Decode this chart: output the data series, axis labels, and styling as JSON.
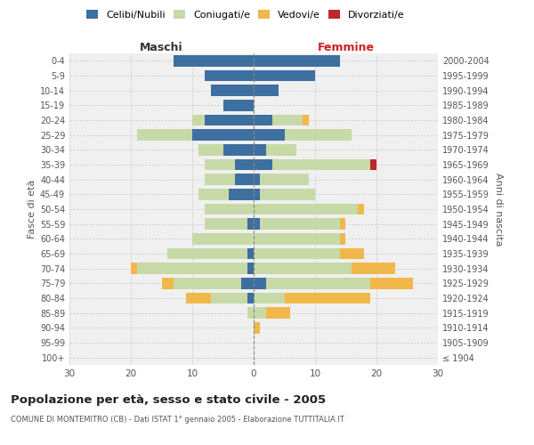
{
  "age_groups": [
    "100+",
    "95-99",
    "90-94",
    "85-89",
    "80-84",
    "75-79",
    "70-74",
    "65-69",
    "60-64",
    "55-59",
    "50-54",
    "45-49",
    "40-44",
    "35-39",
    "30-34",
    "25-29",
    "20-24",
    "15-19",
    "10-14",
    "5-9",
    "0-4"
  ],
  "birth_years": [
    "≤ 1904",
    "1905-1909",
    "1910-1914",
    "1915-1919",
    "1920-1924",
    "1925-1929",
    "1930-1934",
    "1935-1939",
    "1940-1944",
    "1945-1949",
    "1950-1954",
    "1955-1959",
    "1960-1964",
    "1965-1969",
    "1970-1974",
    "1975-1979",
    "1980-1984",
    "1985-1989",
    "1990-1994",
    "1995-1999",
    "2000-2004"
  ],
  "maschi": {
    "celibi": [
      0,
      0,
      0,
      0,
      1,
      2,
      1,
      1,
      0,
      1,
      0,
      4,
      3,
      3,
      5,
      10,
      8,
      5,
      7,
      8,
      13
    ],
    "coniugati": [
      0,
      0,
      0,
      1,
      6,
      11,
      18,
      13,
      10,
      7,
      8,
      5,
      5,
      5,
      4,
      9,
      2,
      0,
      0,
      0,
      0
    ],
    "vedovi": [
      0,
      0,
      0,
      0,
      4,
      2,
      1,
      0,
      0,
      0,
      0,
      0,
      0,
      0,
      0,
      0,
      0,
      0,
      0,
      0,
      0
    ],
    "divorziati": [
      0,
      0,
      0,
      0,
      0,
      0,
      0,
      0,
      0,
      0,
      0,
      0,
      0,
      0,
      0,
      0,
      0,
      0,
      0,
      0,
      0
    ]
  },
  "femmine": {
    "nubili": [
      0,
      0,
      0,
      0,
      0,
      2,
      0,
      0,
      0,
      1,
      0,
      1,
      1,
      3,
      2,
      5,
      3,
      0,
      4,
      10,
      14
    ],
    "coniugate": [
      0,
      0,
      0,
      2,
      5,
      17,
      16,
      14,
      14,
      13,
      17,
      9,
      8,
      16,
      5,
      11,
      5,
      0,
      0,
      0,
      0
    ],
    "vedove": [
      0,
      0,
      1,
      4,
      14,
      7,
      7,
      4,
      1,
      1,
      1,
      0,
      0,
      0,
      0,
      0,
      1,
      0,
      0,
      0,
      0
    ],
    "divorziate": [
      0,
      0,
      0,
      0,
      0,
      0,
      0,
      0,
      0,
      0,
      0,
      0,
      0,
      1,
      0,
      0,
      0,
      0,
      0,
      0,
      0
    ]
  },
  "colors": {
    "celibi_nubili": "#3d6fa0",
    "coniugati": "#c8d9a8",
    "vedovi": "#f0b84a",
    "divorziati": "#c0272d"
  },
  "xlim": 30,
  "title": "Popolazione per età, sesso e stato civile - 2005",
  "subtitle": "COMUNE DI MONTEMITRO (CB) - Dati ISTAT 1° gennaio 2005 - Elaborazione TUTTITALIA.IT",
  "ylabel_left": "Fasce di età",
  "ylabel_right": "Anni di nascita",
  "xlabel_maschi": "Maschi",
  "xlabel_femmine": "Femmine",
  "background_color": "#f0f0f0",
  "grid_color": "#cccccc"
}
